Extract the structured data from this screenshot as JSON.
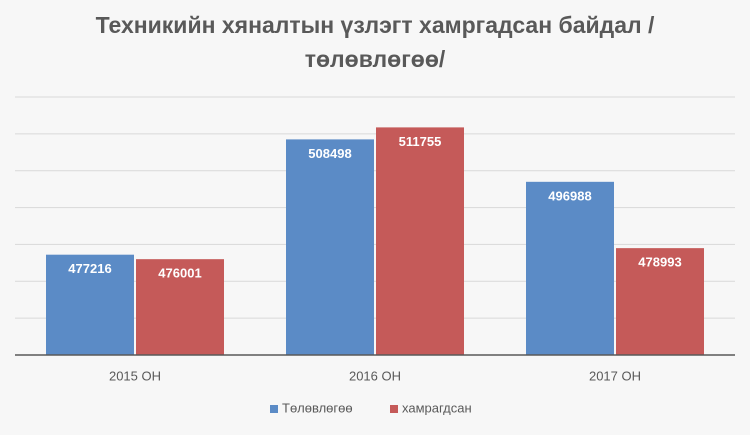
{
  "chart_data": {
    "type": "bar",
    "title": "Техникийн хяналтын үзлэгт хамргадсан байдал /төлөвлөгөө/",
    "categories": [
      "2015 ОН",
      "2016 ОН",
      "2017 ОН"
    ],
    "series": [
      {
        "name": "Төлөвлөгөө",
        "color": "#5b8bc6",
        "values": [
          477216,
          508498,
          496988
        ]
      },
      {
        "name": "хамрагдсан",
        "color": "#c55a59",
        "values": [
          476001,
          511755,
          478993
        ]
      }
    ],
    "ylim": [
      450000,
      520000
    ],
    "yticks": [
      450000,
      460000,
      470000,
      480000,
      490000,
      500000,
      510000,
      520000
    ],
    "grid": true,
    "legend": "bottom"
  }
}
